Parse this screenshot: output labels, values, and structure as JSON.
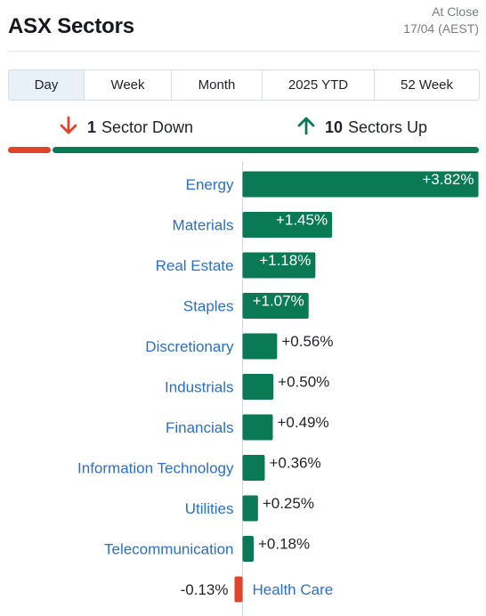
{
  "header": {
    "title": "ASX Sectors",
    "status_line1": "At Close",
    "status_line2": "17/04 (AEST)"
  },
  "tabs": [
    {
      "label": "Day",
      "active": true
    },
    {
      "label": "Week",
      "active": false
    },
    {
      "label": "Month",
      "active": false
    },
    {
      "label": "2025 YTD",
      "active": false
    },
    {
      "label": "52 Week",
      "active": false
    }
  ],
  "summary": {
    "down_count": "1",
    "down_label": "Sector Down",
    "up_count": "10",
    "up_label": "Sectors Up"
  },
  "colors": {
    "positive": "#0a7a55",
    "negative": "#e0452b",
    "label": "#2a6fc9",
    "value_text": "#1f2329"
  },
  "chart_data": {
    "type": "bar",
    "orientation": "horizontal",
    "unit": "%",
    "categories": [
      "Energy",
      "Materials",
      "Real Estate",
      "Staples",
      "Discretionary",
      "Industrials",
      "Financials",
      "Information Technology",
      "Utilities",
      "Telecommunication",
      "Health Care"
    ],
    "values": [
      3.82,
      1.45,
      1.18,
      1.07,
      0.56,
      0.5,
      0.49,
      0.36,
      0.25,
      0.18,
      -0.13
    ],
    "labels": [
      "+3.82%",
      "+1.45%",
      "+1.18%",
      "+1.07%",
      "+0.56%",
      "+0.50%",
      "+0.49%",
      "+0.36%",
      "+0.25%",
      "+0.18%",
      "-0.13%"
    ]
  }
}
